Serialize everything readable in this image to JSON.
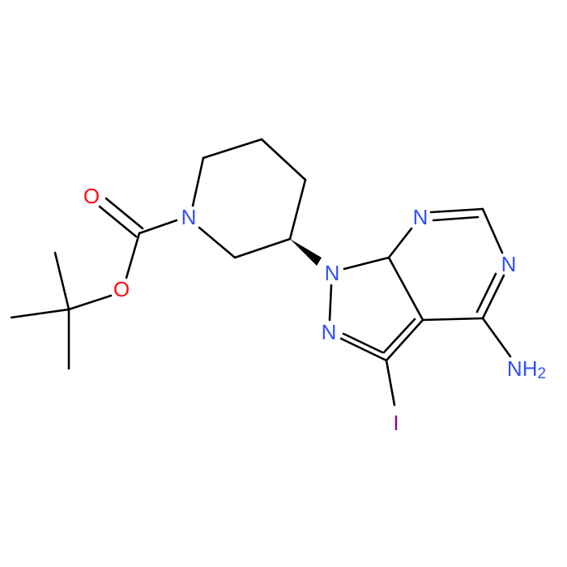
{
  "atoms": [
    {
      "label": "O"
    },
    {
      "label": "O"
    },
    {
      "label": "N"
    },
    {
      "label": "N"
    },
    {
      "label": "N"
    },
    {
      "label": "N"
    },
    {
      "label": "N"
    },
    {
      "label": "NH",
      "subscript": "2"
    },
    {
      "label": "I"
    }
  ]
}
